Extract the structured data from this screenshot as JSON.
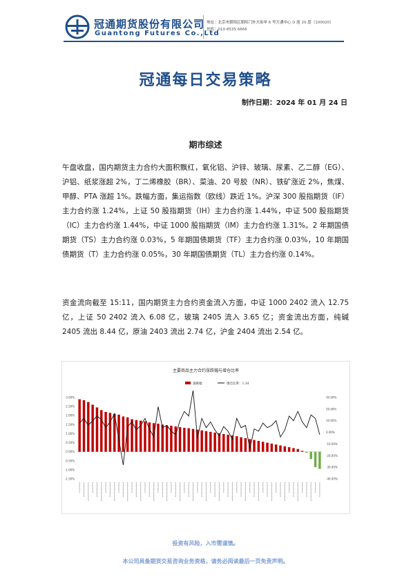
{
  "header": {
    "company_cn": "冠通期货股份有限公司",
    "company_en": "Guantong Futures Co.,Ltd",
    "address": "地址：北京市朝阳区朝阳门外大街甲 6 号万通中心 D 座 20 层（100020）",
    "phone": "总机：010-8535 6666"
  },
  "title": "冠通每日交易策略",
  "date": "制作日期：2024 年 01 月 24 日",
  "section_title": "期市综述",
  "paragraphs": [
    "午盘收盘，国内期货主力合约大面积飘红，氧化铝、沪锌、玻璃、尿素、乙二醇（EG）、沪铝、纸浆涨超 2%，丁二烯橡胶（BR）、菜油、20 号胶（NR）、铁矿涨近 2%，焦煤、甲醇、PTA 涨超 1%。跌幅方面，集运指数（欧线）跌近 1%。沪深 300 股指期货（IF）主力合约涨 1.24%，上证 50 股指期货（IH）主力合约涨 1.44%，中证 500 股指期货（IC）主力合约涨 1.44%，中证 1000 股指期货（IM）主力合约涨 1.31%。2 年期国债期货（TS）主力合约涨 0.03%，5 年期国债期货（TF）主力合约涨 0.03%，10 年期国债期货（T）主力合约涨 0.05%，30 年期国债期货（TL）主力合约涨 0.14%。",
    "资金流向截至 15:11，国内期货主力合约资金流入方面，中证 1000 2402 流入 12.75 亿，上证 50 2402 流入 6.08 亿，玻璃 2405 流入 3.65 亿；资金流出方面，纯碱 2405 流出 8.44 亿，原油 2403 流出 2.74 亿，沪金 2404 流出 2.54 亿。"
  ],
  "chart_data": {
    "type": "bar",
    "title": "主要商品主力合约涨跌幅与增仓比率",
    "series": [
      {
        "name": "涨跌幅",
        "type": "bar",
        "axis": "left",
        "color": "#c00000",
        "values": [
          2.9,
          2.85,
          2.75,
          2.6,
          2.45,
          2.3,
          2.2,
          2.15,
          2.1,
          2.05,
          1.95,
          1.9,
          1.8,
          1.75,
          1.72,
          1.68,
          1.62,
          1.58,
          1.55,
          1.5,
          1.46,
          1.44,
          1.4,
          1.36,
          1.32,
          1.3,
          1.26,
          1.22,
          1.18,
          1.14,
          1.1,
          1.06,
          1.02,
          0.98,
          0.94,
          0.9,
          0.86,
          0.8,
          0.75,
          0.7,
          0.65,
          0.6,
          0.55,
          0.5,
          0.45,
          0.4,
          0.35,
          0.3,
          0.25,
          0.2,
          0.15,
          0.05,
          -0.05,
          -0.4,
          -0.85,
          -0.95
        ]
      },
      {
        "name": "增仓比率：1.34",
        "type": "line",
        "axis": "right",
        "color": "#111111",
        "values": [
          8,
          12,
          6,
          10,
          14,
          11,
          4,
          9,
          16,
          -6,
          -28,
          5,
          9,
          2,
          6,
          12,
          3,
          -4,
          22,
          4,
          6,
          1,
          -2,
          10,
          18,
          14,
          36,
          -5,
          12,
          4,
          9,
          2,
          -3,
          5,
          1,
          -6,
          12,
          4,
          6,
          -14,
          3,
          1,
          8,
          4,
          6,
          10,
          -4,
          2,
          14,
          10,
          18,
          9,
          4,
          15,
          12,
          -2
        ]
      }
    ],
    "left_ticks": [
      "3.00%",
      "2.50%",
      "2.00%",
      "1.50%",
      "1.00%",
      "0.50%",
      "0.00%",
      "-0.50%",
      "-1.00%",
      "-1.50%"
    ],
    "right_ticks": [
      "30.00%",
      "20.00%",
      "10.00%",
      "0.00%",
      "-10.00%",
      "-20.00%",
      "-30.00%",
      "-40.00%"
    ],
    "ylim_left": [
      -1.5,
      3.0
    ],
    "ylim_right": [
      -40,
      30
    ],
    "legend": "top-center"
  },
  "footer": {
    "risk": "投资有风险，入市需谨慎。",
    "disclaimer": "本公司具备期货交易咨询业务资格，请务必阅读最后一页免责声明。"
  }
}
